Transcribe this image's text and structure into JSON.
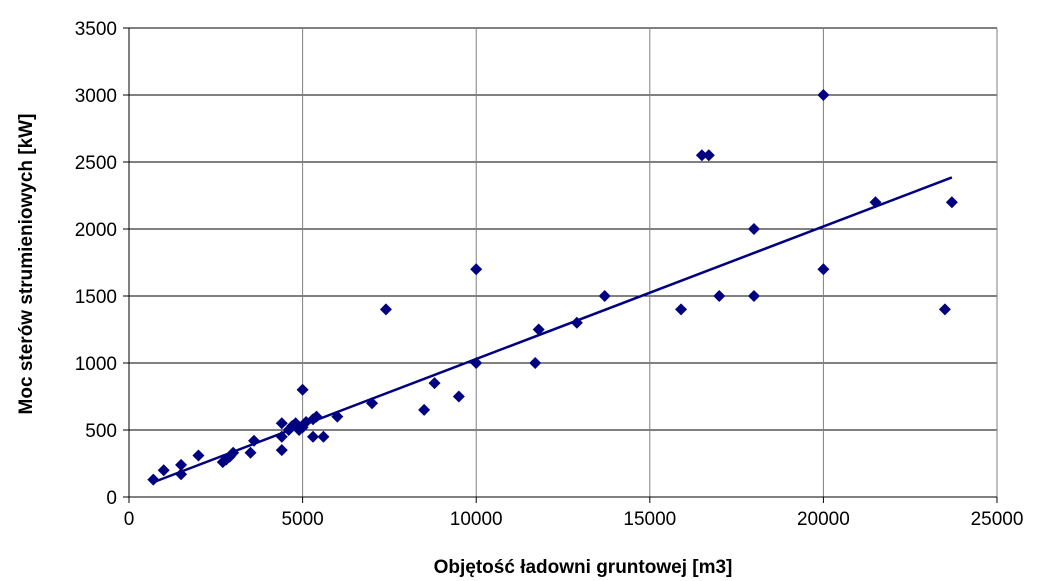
{
  "chart_data": {
    "type": "scatter",
    "title": "",
    "xlabel": "Objętość ładowni gruntowej [m3]",
    "ylabel": "Moc sterów strumieniowych [kW]",
    "xlim": [
      0,
      25000
    ],
    "ylim": [
      0,
      3500
    ],
    "x_ticks": [
      "0",
      "5000",
      "10000",
      "15000",
      "20000",
      "25000"
    ],
    "y_ticks": [
      "0",
      "500",
      "1000",
      "1500",
      "2000",
      "2500",
      "3000",
      "3500"
    ],
    "grid": true,
    "marker": "diamond",
    "marker_color": "#000080",
    "trendline": {
      "type": "linear",
      "x": [
        700,
        23700
      ],
      "y": [
        110,
        2385
      ],
      "color": "#000080"
    },
    "points": [
      [
        700,
        130
      ],
      [
        1000,
        200
      ],
      [
        1500,
        170
      ],
      [
        1500,
        240
      ],
      [
        2000,
        310
      ],
      [
        2700,
        260
      ],
      [
        2800,
        280
      ],
      [
        2900,
        300
      ],
      [
        3000,
        330
      ],
      [
        3500,
        330
      ],
      [
        3600,
        420
      ],
      [
        4400,
        350
      ],
      [
        4400,
        450
      ],
      [
        4400,
        550
      ],
      [
        4600,
        500
      ],
      [
        4700,
        530
      ],
      [
        4800,
        550
      ],
      [
        4900,
        500
      ],
      [
        5000,
        520
      ],
      [
        5000,
        800
      ],
      [
        5100,
        560
      ],
      [
        5300,
        450
      ],
      [
        5300,
        580
      ],
      [
        5400,
        600
      ],
      [
        5600,
        450
      ],
      [
        6000,
        600
      ],
      [
        7000,
        700
      ],
      [
        7400,
        1400
      ],
      [
        8500,
        650
      ],
      [
        8800,
        850
      ],
      [
        9500,
        750
      ],
      [
        10000,
        1000
      ],
      [
        10000,
        1700
      ],
      [
        11700,
        1000
      ],
      [
        11800,
        1250
      ],
      [
        12900,
        1300
      ],
      [
        13700,
        1500
      ],
      [
        15900,
        1400
      ],
      [
        16500,
        2550
      ],
      [
        16700,
        2550
      ],
      [
        17000,
        1500
      ],
      [
        18000,
        1500
      ],
      [
        18000,
        2000
      ],
      [
        20000,
        1700
      ],
      [
        20000,
        3000
      ],
      [
        21500,
        2200
      ],
      [
        23500,
        1400
      ],
      [
        23700,
        2200
      ]
    ]
  }
}
